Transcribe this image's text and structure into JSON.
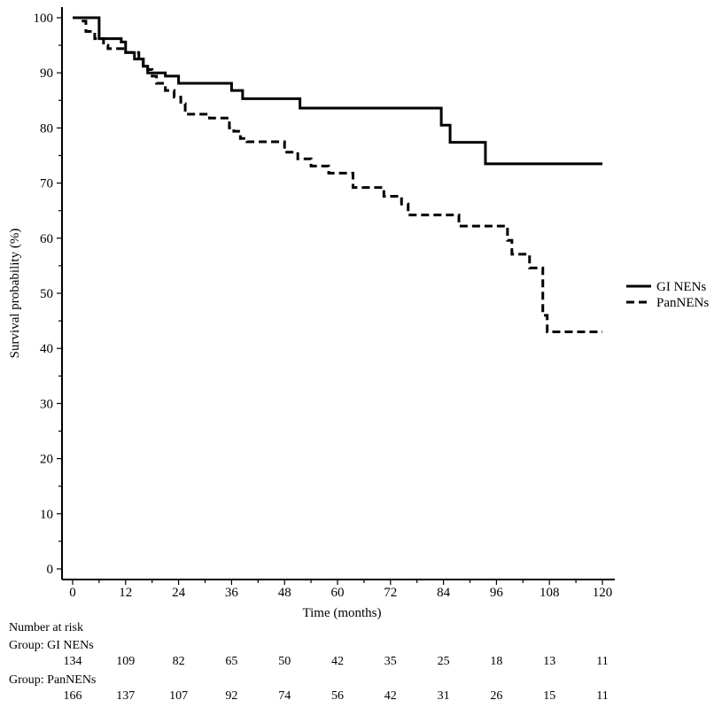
{
  "chart_data": {
    "type": "line",
    "title": "",
    "xlabel": "Time (months)",
    "ylabel": "Survival probability (%)",
    "xlim": [
      -1,
      121
    ],
    "ylim": [
      -1,
      101
    ],
    "x_ticks": [
      0,
      12,
      24,
      36,
      48,
      60,
      72,
      84,
      96,
      108,
      120
    ],
    "y_ticks": [
      0,
      10,
      20,
      30,
      40,
      50,
      60,
      70,
      80,
      90,
      100
    ],
    "grid": false,
    "legend_position": "right",
    "series": [
      {
        "name": "GI NENs",
        "style": "solid",
        "color": "#000000",
        "points": [
          [
            0,
            100
          ],
          [
            6,
            100
          ],
          [
            6,
            96.2
          ],
          [
            11,
            96.2
          ],
          [
            11,
            95.6
          ],
          [
            12,
            95.6
          ],
          [
            12,
            93.7
          ],
          [
            14,
            93.7
          ],
          [
            14,
            92.5
          ],
          [
            16,
            92.5
          ],
          [
            16,
            91.2
          ],
          [
            17,
            91.2
          ],
          [
            17,
            90
          ],
          [
            21,
            90
          ],
          [
            21,
            89.4
          ],
          [
            24,
            89.4
          ],
          [
            24,
            88.1
          ],
          [
            36,
            88.1
          ],
          [
            36,
            86.8
          ],
          [
            38.5,
            86.8
          ],
          [
            38.5,
            85.3
          ],
          [
            51.5,
            85.3
          ],
          [
            51.5,
            83.6
          ],
          [
            83.5,
            83.6
          ],
          [
            83.5,
            80.5
          ],
          [
            85.5,
            80.5
          ],
          [
            85.5,
            77.4
          ],
          [
            93.5,
            77.4
          ],
          [
            93.5,
            73.5
          ],
          [
            120,
            73.5
          ]
        ]
      },
      {
        "name": "PanNENs",
        "style": "dashed",
        "color": "#000000",
        "points": [
          [
            0,
            100
          ],
          [
            2,
            100
          ],
          [
            2,
            99.4
          ],
          [
            3,
            99.4
          ],
          [
            3,
            97.5
          ],
          [
            5,
            97.5
          ],
          [
            5,
            96.2
          ],
          [
            7,
            96.2
          ],
          [
            7,
            95
          ],
          [
            8,
            95
          ],
          [
            8,
            94.4
          ],
          [
            12,
            94.4
          ],
          [
            12,
            93.7
          ],
          [
            15,
            93.7
          ],
          [
            15,
            92.5
          ],
          [
            16,
            92.5
          ],
          [
            16,
            91.2
          ],
          [
            17,
            91.2
          ],
          [
            17,
            90.6
          ],
          [
            18,
            90.6
          ],
          [
            18,
            89.4
          ],
          [
            19,
            89.4
          ],
          [
            19,
            88.1
          ],
          [
            21,
            88.1
          ],
          [
            21,
            86.8
          ],
          [
            23,
            86.8
          ],
          [
            23,
            85.6
          ],
          [
            24.5,
            85.6
          ],
          [
            24.5,
            84.4
          ],
          [
            25.5,
            84.4
          ],
          [
            25.5,
            82.5
          ],
          [
            31,
            82.5
          ],
          [
            31,
            81.8
          ],
          [
            35.5,
            81.8
          ],
          [
            35.5,
            80
          ],
          [
            36.5,
            80
          ],
          [
            36.5,
            79.4
          ],
          [
            38,
            79.4
          ],
          [
            38,
            78.1
          ],
          [
            39.5,
            78.1
          ],
          [
            39.5,
            77.5
          ],
          [
            48,
            77.5
          ],
          [
            48,
            75.6
          ],
          [
            51,
            75.6
          ],
          [
            51,
            74.4
          ],
          [
            54,
            74.4
          ],
          [
            54,
            73.1
          ],
          [
            58,
            73.1
          ],
          [
            58,
            71.8
          ],
          [
            63.5,
            71.8
          ],
          [
            63.5,
            69.2
          ],
          [
            70.5,
            69.2
          ],
          [
            70.5,
            67.6
          ],
          [
            74.5,
            67.6
          ],
          [
            74.5,
            66.2
          ],
          [
            76,
            66.2
          ],
          [
            76,
            64.2
          ],
          [
            87.5,
            64.2
          ],
          [
            87.5,
            62.2
          ],
          [
            98.5,
            62.2
          ],
          [
            98.5,
            59.6
          ],
          [
            99.5,
            59.6
          ],
          [
            99.5,
            57.1
          ],
          [
            103.5,
            57.1
          ],
          [
            103.5,
            54.6
          ],
          [
            106.5,
            54.6
          ],
          [
            106.5,
            46
          ],
          [
            107.5,
            46
          ],
          [
            107.5,
            43
          ],
          [
            120,
            43
          ]
        ]
      }
    ],
    "risk_table": {
      "title": "Number at risk",
      "time_points": [
        0,
        12,
        24,
        36,
        48,
        60,
        72,
        84,
        96,
        108,
        120
      ],
      "groups": [
        {
          "label": "Group: GI NENs",
          "counts": [
            "134",
            "109",
            "82",
            "65",
            "50",
            "42",
            "35",
            "25",
            "18",
            "13",
            "11"
          ]
        },
        {
          "label": "Group: PanNENs",
          "counts": [
            "166",
            "137",
            "107",
            "92",
            "74",
            "56",
            "42",
            "31",
            "26",
            "15",
            "11"
          ]
        }
      ]
    }
  }
}
